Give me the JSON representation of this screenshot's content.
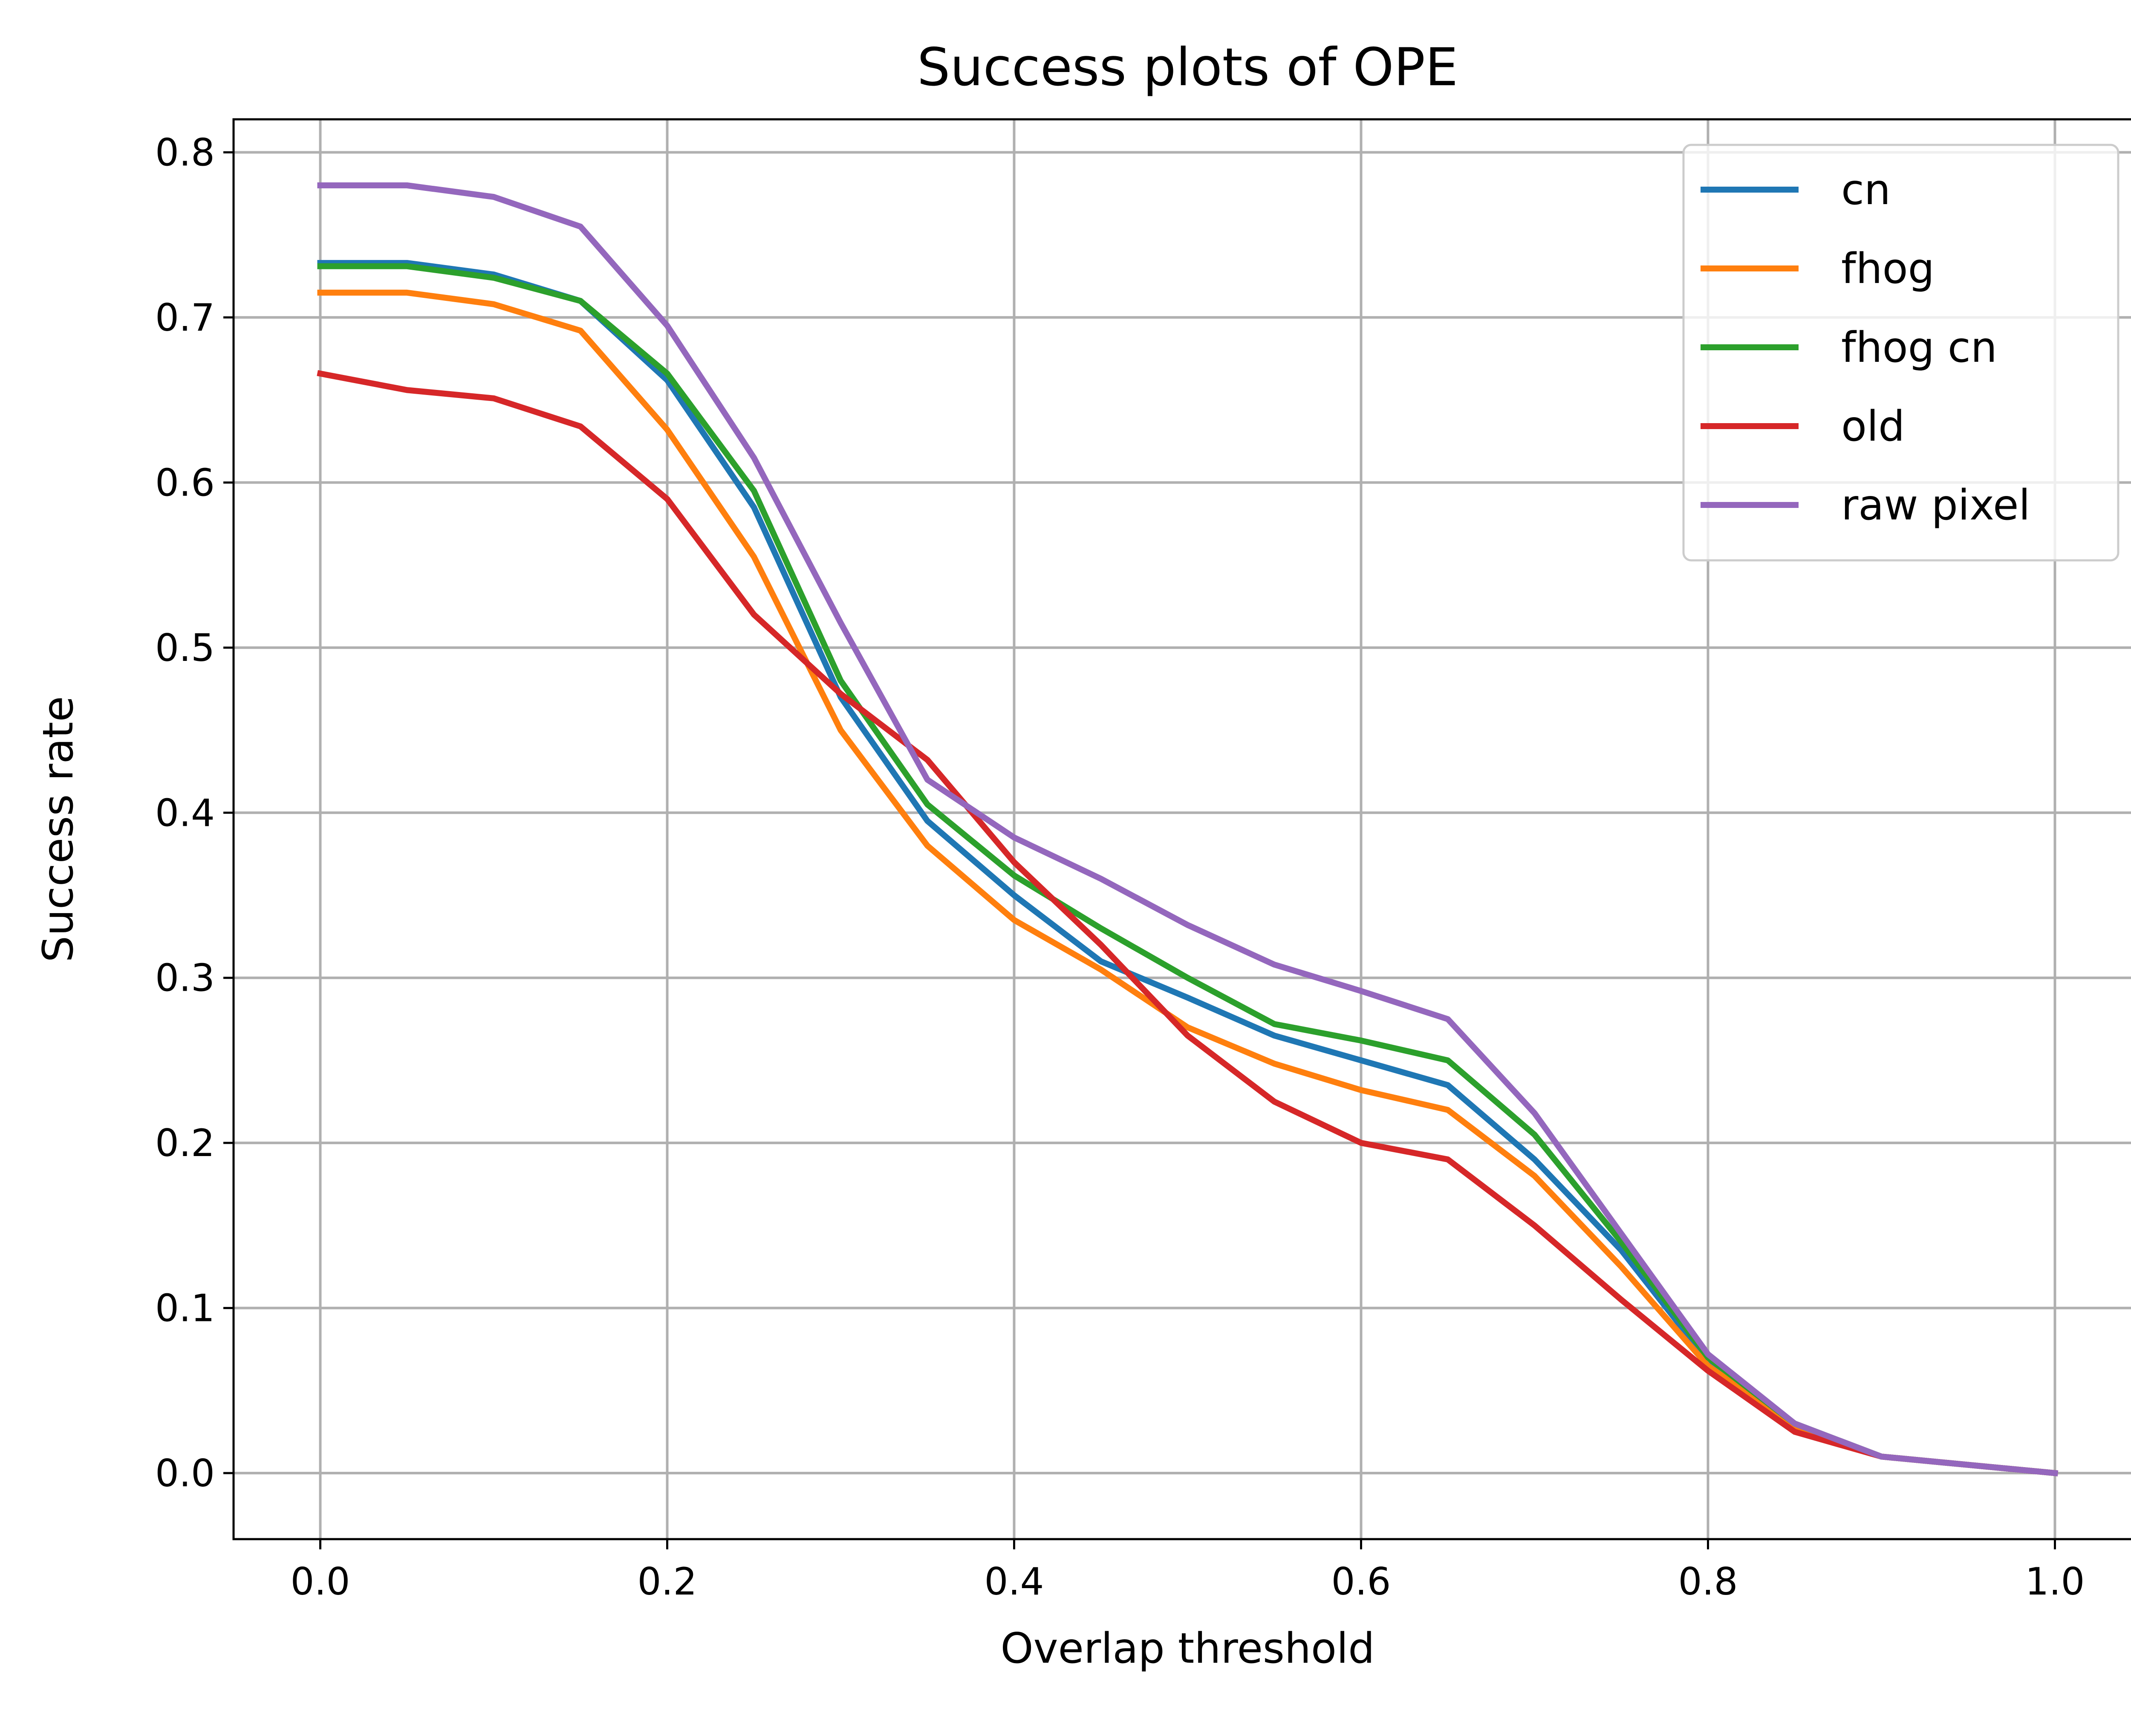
{
  "chart_data": {
    "type": "line",
    "title": "Success plots of OPE",
    "xlabel": "Overlap threshold",
    "ylabel": "Success rate",
    "xlim": [
      -0.05,
      1.05
    ],
    "ylim": [
      -0.04,
      0.82
    ],
    "xticks": [
      0.0,
      0.2,
      0.4,
      0.6,
      0.8,
      1.0
    ],
    "xtick_labels": [
      "0.0",
      "0.2",
      "0.4",
      "0.6",
      "0.8",
      "1.0"
    ],
    "yticks": [
      0.0,
      0.1,
      0.2,
      0.3,
      0.4,
      0.5,
      0.6,
      0.7,
      0.8
    ],
    "ytick_labels": [
      "0.0",
      "0.1",
      "0.2",
      "0.3",
      "0.4",
      "0.5",
      "0.6",
      "0.7",
      "0.8"
    ],
    "grid": true,
    "legend_position": "top-right",
    "x": [
      0.0,
      0.05,
      0.1,
      0.15,
      0.2,
      0.25,
      0.3,
      0.35,
      0.4,
      0.45,
      0.5,
      0.55,
      0.6,
      0.65,
      0.7,
      0.75,
      0.8,
      0.85,
      0.9,
      0.95,
      1.0
    ],
    "series": [
      {
        "name": "cn",
        "color": "#1f77b4",
        "values": [
          0.733,
          0.733,
          0.726,
          0.71,
          0.662,
          0.585,
          0.47,
          0.395,
          0.35,
          0.31,
          0.288,
          0.265,
          0.25,
          0.235,
          0.19,
          0.135,
          0.068,
          0.028,
          0.01,
          0.005,
          0.0
        ]
      },
      {
        "name": "fhog",
        "color": "#ff7f0e",
        "values": [
          0.715,
          0.715,
          0.708,
          0.692,
          0.632,
          0.555,
          0.45,
          0.38,
          0.335,
          0.305,
          0.27,
          0.248,
          0.232,
          0.22,
          0.18,
          0.125,
          0.065,
          0.028,
          0.01,
          0.005,
          0.0
        ]
      },
      {
        "name": "fhog cn",
        "color": "#2ca02c",
        "values": [
          0.731,
          0.731,
          0.724,
          0.71,
          0.666,
          0.595,
          0.48,
          0.405,
          0.362,
          0.33,
          0.3,
          0.272,
          0.262,
          0.25,
          0.205,
          0.14,
          0.07,
          0.03,
          0.01,
          0.005,
          0.0
        ]
      },
      {
        "name": "old",
        "color": "#d62728",
        "values": [
          0.666,
          0.656,
          0.651,
          0.634,
          0.59,
          0.52,
          0.472,
          0.432,
          0.37,
          0.32,
          0.265,
          0.225,
          0.2,
          0.19,
          0.15,
          0.105,
          0.062,
          0.025,
          0.01,
          0.005,
          0.0
        ]
      },
      {
        "name": "raw pixel",
        "color": "#9467bd",
        "values": [
          0.78,
          0.78,
          0.773,
          0.755,
          0.695,
          0.615,
          0.515,
          0.42,
          0.385,
          0.36,
          0.332,
          0.308,
          0.292,
          0.275,
          0.218,
          0.145,
          0.072,
          0.03,
          0.01,
          0.005,
          0.0
        ]
      }
    ]
  }
}
